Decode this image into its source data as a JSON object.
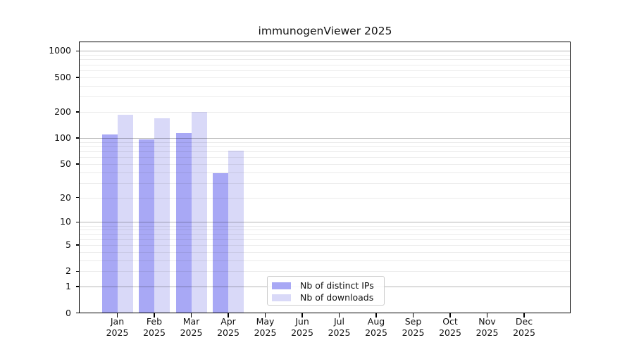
{
  "chart_data": {
    "type": "bar",
    "title": "immunogenViewer 2025",
    "categories": [
      "Jan 2025",
      "Feb 2025",
      "Mar 2025",
      "Apr 2025",
      "May 2025",
      "Jun 2025",
      "Jul 2025",
      "Aug 2025",
      "Sep 2025",
      "Oct 2025",
      "Nov 2025",
      "Dec 2025"
    ],
    "series": [
      {
        "name": "Nb of distinct IPs",
        "color": "#a8a8f5",
        "values": [
          110,
          96,
          113,
          39,
          0,
          0,
          0,
          0,
          0,
          0,
          0,
          0
        ]
      },
      {
        "name": "Nb of downloads",
        "color": "#d9d9f8",
        "values": [
          184,
          170,
          200,
          71,
          0,
          0,
          0,
          0,
          0,
          0,
          0,
          0
        ]
      }
    ],
    "yscale": "log1p",
    "yticks": [
      1000,
      500,
      200,
      100,
      50,
      20,
      10,
      5,
      2,
      1,
      0
    ],
    "ylim": [
      0,
      1270
    ],
    "xlabel": "",
    "ylabel": "",
    "grid": true,
    "legend_position": "bottom-center-inside",
    "axis_color": "#000000",
    "grid_major_color": "#b6b6b6",
    "grid_minor_color": "#ebebeb"
  }
}
